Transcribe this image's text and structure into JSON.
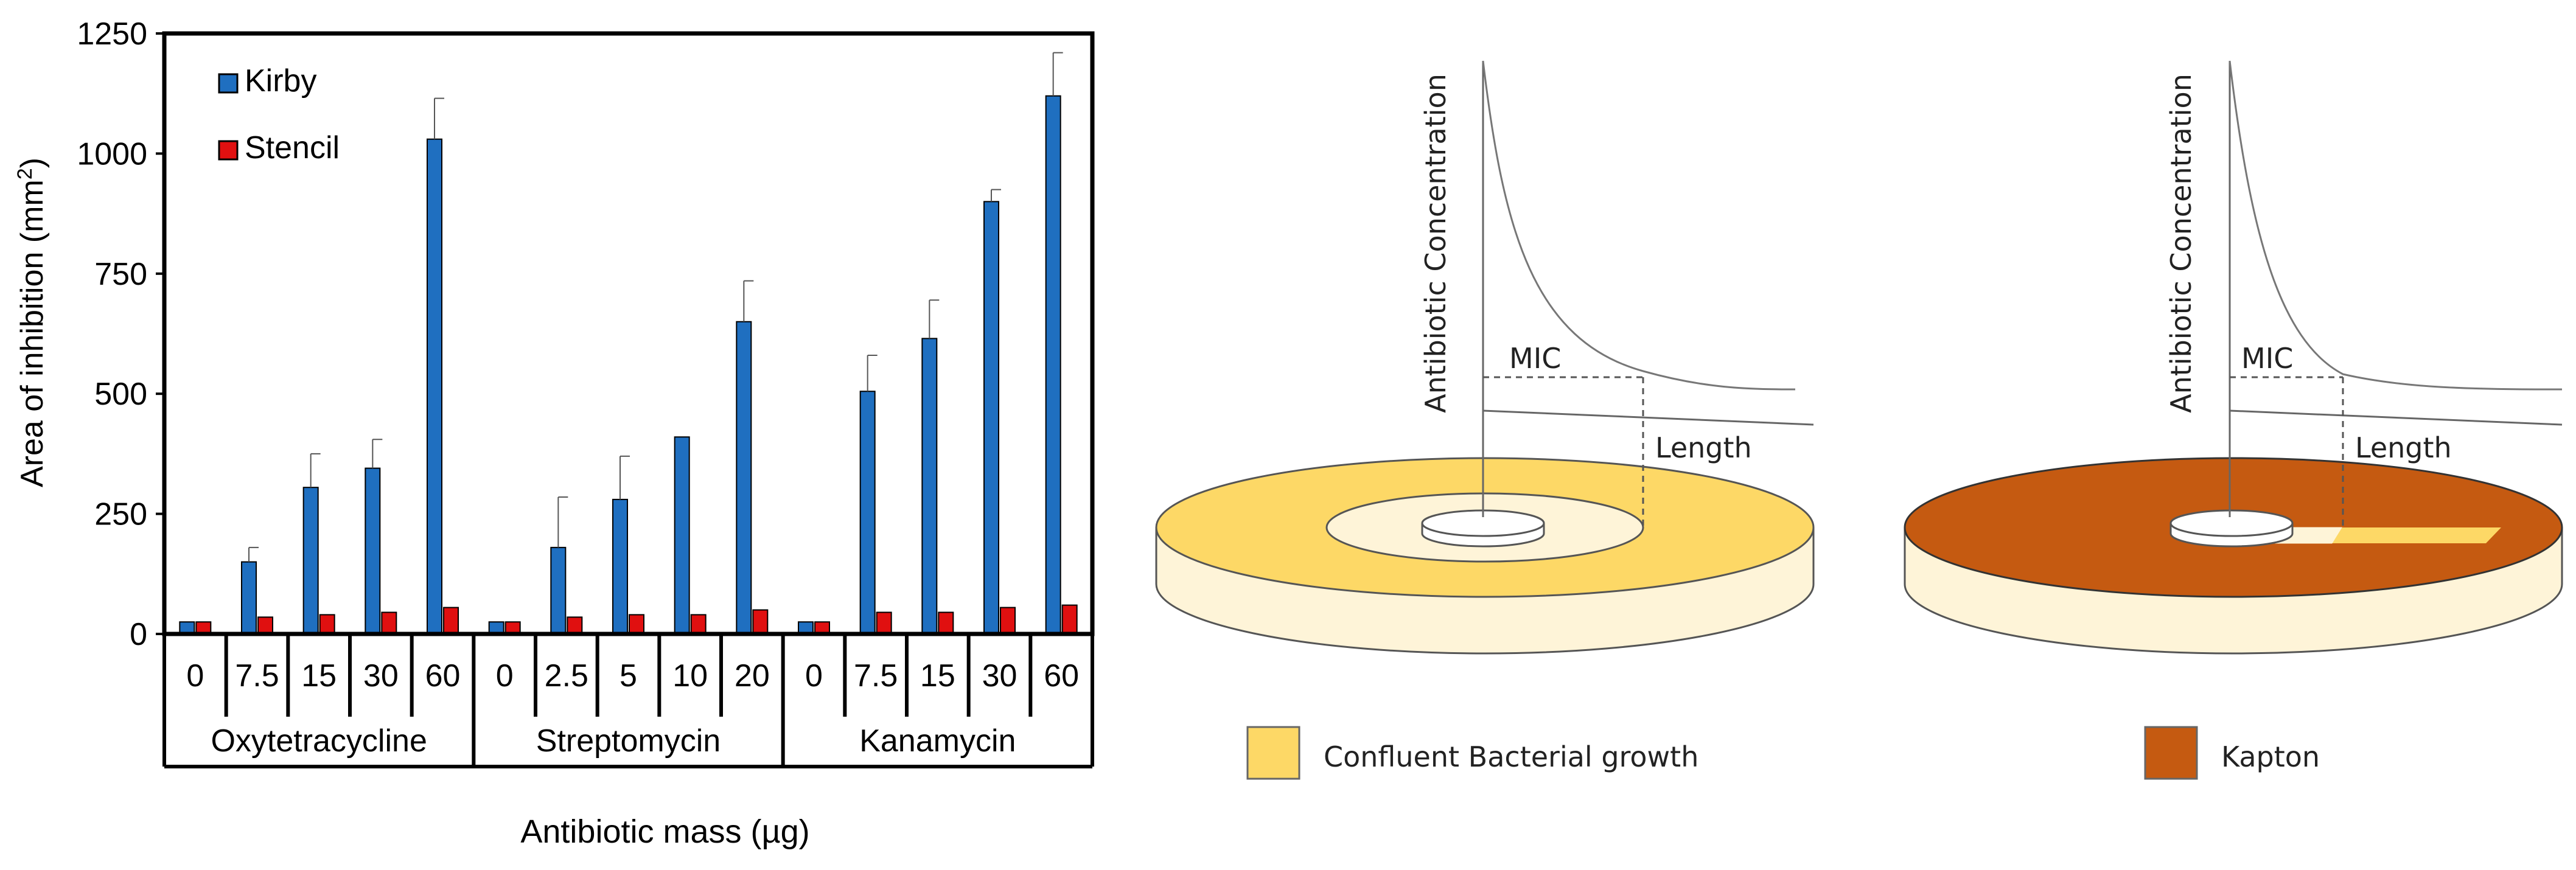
{
  "colors": {
    "kirby": "#1f6fc0",
    "stencil": "#e01010",
    "bacterial_growth": "#fdd866",
    "kapton": "#c55a11",
    "dish_side": "#fef4d8"
  },
  "chart_data": {
    "type": "bar",
    "ylabel": "Area of inhibition (mm",
    "ylabel_sup": "2",
    "ylabel_close": ")",
    "xlabel": "Antibiotic mass (µg)",
    "ylim": [
      0,
      1250
    ],
    "yticks": [
      "0",
      "250",
      "500",
      "750",
      "1000",
      "1250"
    ],
    "ytick_values": [
      0,
      250,
      500,
      750,
      1000,
      1250
    ],
    "groups": [
      {
        "name": "Oxytetracycline",
        "categories": [
          "0",
          "7.5",
          "15",
          "30",
          "60"
        ]
      },
      {
        "name": "Streptomycin",
        "categories": [
          "0",
          "2.5",
          "5",
          "10",
          "20"
        ]
      },
      {
        "name": "Kanamycin",
        "categories": [
          "0",
          "7.5",
          "15",
          "30",
          "60"
        ]
      }
    ],
    "series": [
      {
        "name": "Kirby",
        "values": [
          25,
          150,
          305,
          345,
          1030,
          25,
          180,
          280,
          410,
          650,
          25,
          505,
          615,
          900,
          1120
        ],
        "errors": [
          0,
          30,
          70,
          60,
          85,
          0,
          105,
          90,
          0,
          85,
          0,
          75,
          80,
          25,
          90
        ]
      },
      {
        "name": "Stencil",
        "values": [
          25,
          35,
          40,
          45,
          55,
          25,
          35,
          40,
          40,
          50,
          25,
          45,
          45,
          55,
          60
        ],
        "errors": [
          0,
          0,
          0,
          0,
          0,
          0,
          0,
          0,
          0,
          0,
          0,
          0,
          0,
          0,
          0
        ]
      }
    ],
    "legend": [
      "Kirby",
      "Stencil"
    ],
    "legend_position": "top-left"
  },
  "diagrams": {
    "left": {
      "axis_label": "Antibiotic Concentration",
      "mic_label": "MIC",
      "length_label": "Length"
    },
    "right": {
      "axis_label": "Antibiotic Concentration",
      "mic_label": "MIC",
      "length_label": "Length"
    },
    "legend": [
      {
        "label": "Confluent Bacterial growth",
        "color_key": "bacterial_growth"
      },
      {
        "label": "Kapton",
        "color_key": "kapton"
      }
    ]
  }
}
